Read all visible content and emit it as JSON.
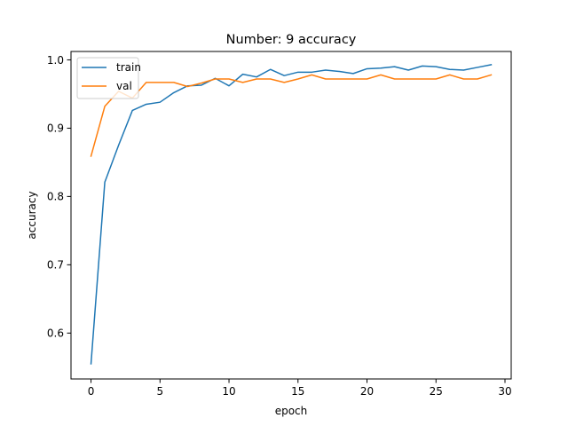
{
  "chart_data": {
    "type": "line",
    "title": "Number: 9 accuracy",
    "xlabel": "epoch",
    "ylabel": "accuracy",
    "xlim": [
      -1.45,
      30.45
    ],
    "ylim": [
      0.5328,
      1.0123
    ],
    "xticks": [
      0,
      5,
      10,
      15,
      20,
      25,
      30
    ],
    "yticks": [
      0.6,
      0.7,
      0.8,
      0.9,
      1.0
    ],
    "ytick_labels": [
      "0.6",
      "0.7",
      "0.8",
      "0.9",
      "1.0"
    ],
    "grid": false,
    "legend_position": "upper-left",
    "x": [
      0,
      1,
      2,
      3,
      4,
      5,
      6,
      7,
      8,
      9,
      10,
      11,
      12,
      13,
      14,
      15,
      16,
      17,
      18,
      19,
      20,
      21,
      22,
      23,
      24,
      25,
      26,
      27,
      28,
      29
    ],
    "series": [
      {
        "name": "train",
        "color": "#1f77b4",
        "values": [
          0.555,
          0.821,
          0.875,
          0.926,
          0.935,
          0.938,
          0.952,
          0.962,
          0.963,
          0.973,
          0.962,
          0.979,
          0.975,
          0.986,
          0.977,
          0.982,
          0.982,
          0.985,
          0.983,
          0.98,
          0.987,
          0.988,
          0.99,
          0.985,
          0.991,
          0.99,
          0.986,
          0.985,
          0.989,
          0.993
        ]
      },
      {
        "name": "val",
        "color": "#ff7f0e",
        "values": [
          0.859,
          0.932,
          0.954,
          0.944,
          0.967,
          0.967,
          0.967,
          0.961,
          0.966,
          0.972,
          0.972,
          0.967,
          0.972,
          0.972,
          0.967,
          0.972,
          0.978,
          0.972,
          0.972,
          0.972,
          0.972,
          0.978,
          0.972,
          0.972,
          0.972,
          0.972,
          0.978,
          0.972,
          0.972,
          0.978
        ]
      }
    ]
  }
}
